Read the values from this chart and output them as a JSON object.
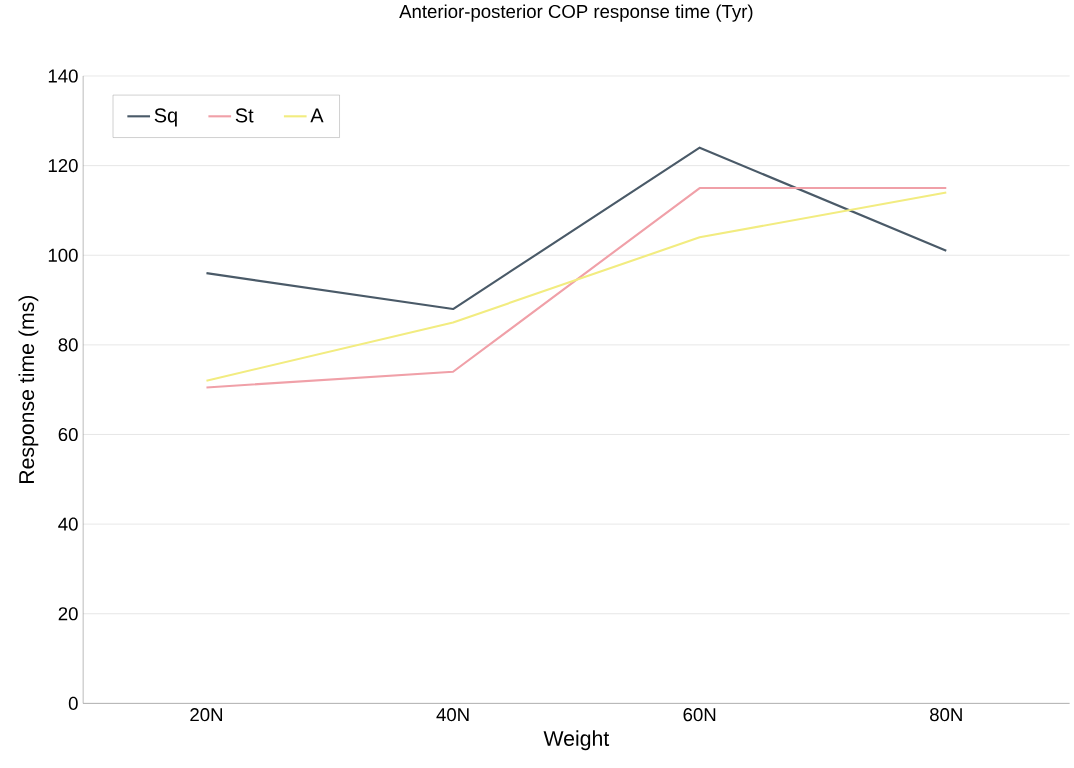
{
  "chart_data": {
    "type": "line",
    "title": "Anterior-posterior COP response time (Tyr)",
    "xlabel": "Weight",
    "ylabel": "Response time (ms)",
    "categories": [
      "20N",
      "40N",
      "60N",
      "80N"
    ],
    "series": [
      {
        "name": "Sq",
        "color": "#4a5a68",
        "values": [
          96,
          88,
          124,
          101
        ]
      },
      {
        "name": "St",
        "color": "#f0a0a8",
        "values": [
          70.5,
          74,
          115,
          115
        ]
      },
      {
        "name": "A",
        "color": "#f2ec80",
        "values": [
          72,
          85,
          104,
          114
        ]
      }
    ],
    "ylim": [
      0,
      140
    ],
    "yticks": [
      0,
      20,
      40,
      60,
      80,
      100,
      120,
      140
    ],
    "grid": "y",
    "legend": "top left",
    "marker": "none",
    "line_style": "solid"
  }
}
